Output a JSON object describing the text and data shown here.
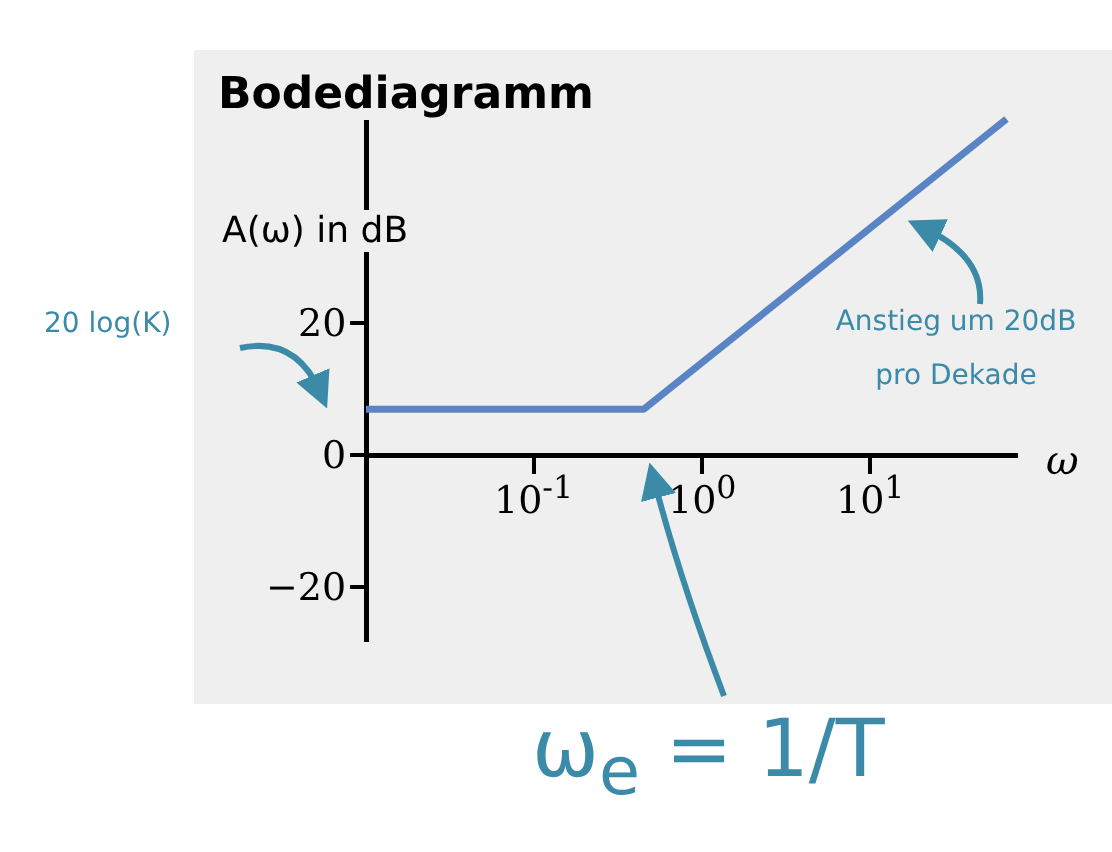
{
  "chart_data": {
    "type": "line",
    "title": "Bodediagramm",
    "xlabel": "ω",
    "ylabel": "A(ω) in dB",
    "log": "x",
    "grid": false,
    "legend": false,
    "marker": "none",
    "line_style": "solid",
    "xlim": [
      0.01,
      74
    ],
    "xticks": [
      {
        "value": 0.1,
        "label": "10$^{-1}$"
      },
      {
        "value": 1,
        "label": "10$^{0}$"
      },
      {
        "value": 10,
        "label": "10$^{1}$"
      }
    ],
    "ylim": [
      -28,
      56
    ],
    "yticks": [
      {
        "value": -20,
        "label": "−20"
      },
      0,
      20
    ],
    "series": [
      {
        "color": "#5b84c4",
        "x": [
          0.01,
          0.45,
          65
        ],
        "values": [
          7,
          7,
          51
        ]
      }
    ],
    "annotations": [
      "20 log(K)",
      "Anstieg um 20dB pro Dekade",
      "ω$_{e}$ = 1/T"
    ]
  }
}
